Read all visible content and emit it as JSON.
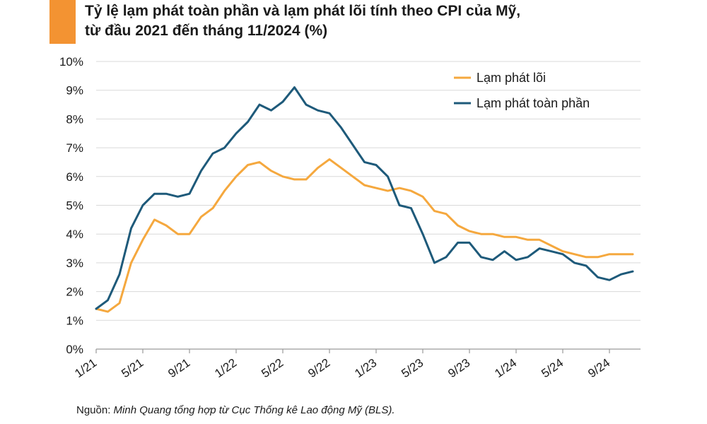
{
  "title": {
    "line1": "Tỷ lệ lạm phát toàn phần và lạm phát lõi tính theo CPI của Mỹ,",
    "line2": "từ đầu 2021 đến tháng 11/2024 (%)"
  },
  "source": {
    "label": "Nguồn:",
    "text": "Minh Quang tổng hợp từ Cục Thống kê Lao động Mỹ (BLS)."
  },
  "colors": {
    "accent": "#f39332",
    "core": "#f5a83e",
    "headline": "#1e5a7a",
    "grid": "#d9d9d9"
  },
  "chart_data": {
    "type": "line",
    "title": "Tỷ lệ lạm phát toàn phần và lạm phát lõi tính theo CPI của Mỹ, từ đầu 2021 đến tháng 11/2024 (%)",
    "xlabel": "",
    "ylabel": "",
    "ylim": [
      0,
      10
    ],
    "yticks": [
      "0%",
      "1%",
      "2%",
      "3%",
      "4%",
      "5%",
      "6%",
      "7%",
      "8%",
      "9%",
      "10%"
    ],
    "xticks": [
      {
        "index": 0,
        "label": "1/21"
      },
      {
        "index": 4,
        "label": "5/21"
      },
      {
        "index": 8,
        "label": "9/21"
      },
      {
        "index": 12,
        "label": "1/22"
      },
      {
        "index": 16,
        "label": "5/22"
      },
      {
        "index": 20,
        "label": "9/22"
      },
      {
        "index": 24,
        "label": "1/23"
      },
      {
        "index": 28,
        "label": "5/23"
      },
      {
        "index": 32,
        "label": "9/23"
      },
      {
        "index": 36,
        "label": "1/24"
      },
      {
        "index": 40,
        "label": "5/24"
      },
      {
        "index": 44,
        "label": "9/24"
      }
    ],
    "n_points": 47,
    "grid": true,
    "legend_position": "top-right",
    "series": [
      {
        "name": "Lạm phát lõi",
        "color": "#f5a83e",
        "values": [
          1.4,
          1.3,
          1.6,
          3.0,
          3.8,
          4.5,
          4.3,
          4.0,
          4.0,
          4.6,
          4.9,
          5.5,
          6.0,
          6.4,
          6.5,
          6.2,
          6.0,
          5.9,
          5.9,
          6.3,
          6.6,
          6.3,
          6.0,
          5.7,
          5.6,
          5.5,
          5.6,
          5.5,
          5.3,
          4.8,
          4.7,
          4.3,
          4.1,
          4.0,
          4.0,
          3.9,
          3.9,
          3.8,
          3.8,
          3.6,
          3.4,
          3.3,
          3.2,
          3.2,
          3.3,
          3.3,
          3.3
        ]
      },
      {
        "name": "Lạm phát toàn phần",
        "color": "#1e5a7a",
        "values": [
          1.4,
          1.7,
          2.6,
          4.2,
          5.0,
          5.4,
          5.4,
          5.3,
          5.4,
          6.2,
          6.8,
          7.0,
          7.5,
          7.9,
          8.5,
          8.3,
          8.6,
          9.1,
          8.5,
          8.3,
          8.2,
          7.7,
          7.1,
          6.5,
          6.4,
          6.0,
          5.0,
          4.9,
          4.0,
          3.0,
          3.2,
          3.7,
          3.7,
          3.2,
          3.1,
          3.4,
          3.1,
          3.2,
          3.5,
          3.4,
          3.3,
          3.0,
          2.9,
          2.5,
          2.4,
          2.6,
          2.7
        ]
      }
    ]
  }
}
